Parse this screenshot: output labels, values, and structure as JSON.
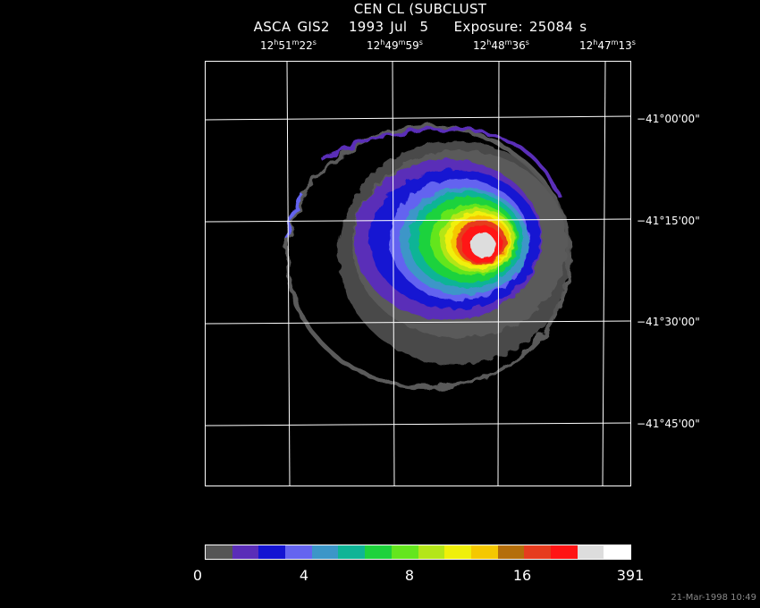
{
  "title": {
    "main": "CEN CL (SUBCLUST",
    "sub": "ASCA GIS2   1993 Jul  5    Exposure: 25084 s"
  },
  "ra_labels": [
    {
      "h": "12",
      "m": "51",
      "s": "22"
    },
    {
      "h": "12",
      "m": "49",
      "s": "59"
    },
    {
      "h": "12",
      "m": "48",
      "s": "36"
    },
    {
      "h": "12",
      "m": "47",
      "s": "13"
    }
  ],
  "dec_labels": [
    {
      "d": "−41",
      "m": "00",
      "s": "00"
    },
    {
      "d": "−41",
      "m": "15",
      "s": "00"
    },
    {
      "d": "−41",
      "m": "30",
      "s": "00"
    },
    {
      "d": "−41",
      "m": "45",
      "s": "00"
    }
  ],
  "colorbar": {
    "labels": [
      "0",
      "4",
      "8",
      "16",
      "391"
    ],
    "colors": [
      "#555555",
      "#5a2db8",
      "#1414d2",
      "#6464f0",
      "#3c96c8",
      "#0fb496",
      "#1ed23c",
      "#64e61e",
      "#b4e619",
      "#f0f00a",
      "#f5c800",
      "#b46e0a",
      "#e63c1e",
      "#ff1414",
      "#dddddd",
      "#ffffff"
    ]
  },
  "timestamp": "21-Mar-1998 10:49"
}
